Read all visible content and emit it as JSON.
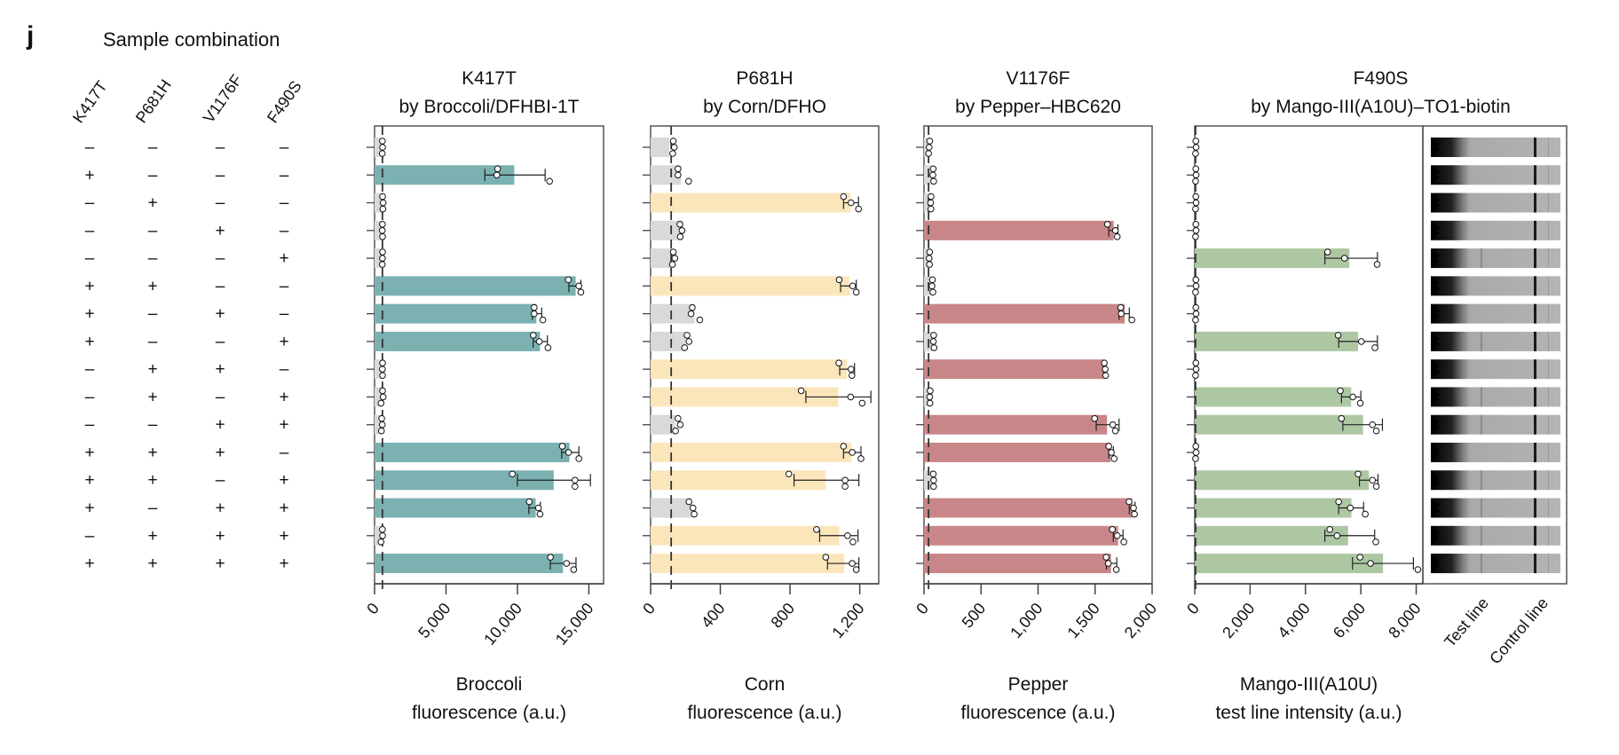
{
  "panel_label": "j",
  "sample_table": {
    "title": "Sample combination",
    "columns": [
      "K417T",
      "P681H",
      "V1176F",
      "F490S"
    ],
    "rows": [
      [
        "–",
        "–",
        "–",
        "–"
      ],
      [
        "+",
        "–",
        "–",
        "–"
      ],
      [
        "–",
        "+",
        "–",
        "–"
      ],
      [
        "–",
        "–",
        "+",
        "–"
      ],
      [
        "–",
        "–",
        "–",
        "+"
      ],
      [
        "+",
        "+",
        "–",
        "–"
      ],
      [
        "+",
        "–",
        "+",
        "–"
      ],
      [
        "+",
        "–",
        "–",
        "+"
      ],
      [
        "–",
        "+",
        "+",
        "–"
      ],
      [
        "–",
        "+",
        "–",
        "+"
      ],
      [
        "–",
        "–",
        "+",
        "+"
      ],
      [
        "+",
        "+",
        "+",
        "–"
      ],
      [
        "+",
        "+",
        "–",
        "+"
      ],
      [
        "+",
        "–",
        "+",
        "+"
      ],
      [
        "–",
        "+",
        "+",
        "+"
      ],
      [
        "+",
        "+",
        "+",
        "+"
      ]
    ]
  },
  "chart_data": [
    {
      "type": "bar",
      "orientation": "horizontal",
      "title": [
        "K417T",
        "by Broccoli/DFHBI-1T"
      ],
      "xlabel": [
        "Broccoli",
        "fluorescence (a.u.)"
      ],
      "xlim": [
        0,
        16030
      ],
      "xticks": [
        0,
        5000,
        10000,
        15000
      ],
      "xtick_labels": [
        "0",
        "5,000",
        "10,000",
        "15,000"
      ],
      "threshold": 550,
      "color": "#7bb1b1",
      "negative_color": "#d9d9d9",
      "positive": [
        false,
        true,
        false,
        false,
        false,
        true,
        true,
        true,
        false,
        false,
        false,
        true,
        true,
        true,
        false,
        true
      ],
      "values": [
        480,
        9780,
        500,
        490,
        500,
        14080,
        11330,
        11580,
        500,
        480,
        460,
        13640,
        12540,
        11280,
        470,
        13190
      ],
      "points": [
        [
          550,
          560,
          540
        ],
        [
          8610,
          8560,
          12250
        ],
        [
          560,
          600,
          580
        ],
        [
          550,
          540,
          560
        ],
        [
          560,
          550,
          540
        ],
        [
          13560,
          14300,
          14440
        ],
        [
          11170,
          11170,
          11780
        ],
        [
          11110,
          11530,
          12140
        ],
        [
          560,
          550,
          560
        ],
        [
          560,
          600,
          450
        ],
        [
          500,
          540,
          480
        ],
        [
          13140,
          13580,
          14300
        ],
        [
          9640,
          14030,
          14030
        ],
        [
          10830,
          11470,
          11580
        ],
        [
          550,
          560,
          450
        ],
        [
          12310,
          13440,
          13940
        ]
      ],
      "error": [
        null,
        [
          7720,
          11940
        ],
        null,
        null,
        null,
        [
          13600,
          14440
        ],
        [
          11050,
          11700
        ],
        [
          11100,
          12100
        ],
        null,
        null,
        null,
        [
          13100,
          14300
        ],
        [
          10000,
          15110
        ],
        [
          10800,
          11600
        ],
        null,
        [
          12300,
          14100
        ]
      ]
    },
    {
      "type": "bar",
      "orientation": "horizontal",
      "title": [
        "P681H",
        "by Corn/DFHO"
      ],
      "xlabel": [
        "Corn",
        "fluorescence (a.u.)"
      ],
      "xlim": [
        0,
        1309
      ],
      "xticks": [
        0,
        400,
        800,
        1200
      ],
      "xtick_labels": [
        "0",
        "400",
        "800",
        "1,200"
      ],
      "threshold": 118,
      "color": "#fbe6bc",
      "negative_color": "#d9d9d9",
      "positive": [
        false,
        false,
        true,
        false,
        false,
        true,
        false,
        false,
        true,
        true,
        false,
        true,
        true,
        false,
        true,
        true
      ],
      "values": [
        107,
        175,
        1148,
        186,
        123,
        1141,
        252,
        200,
        1127,
        1077,
        141,
        1152,
        1005,
        236,
        1082,
        1111
      ],
      "points": [
        [
          130,
          136,
          127
        ],
        [
          157,
          157,
          218
        ],
        [
          1107,
          1150,
          1193
        ],
        [
          168,
          180,
          170
        ],
        [
          130,
          139,
          125
        ],
        [
          1082,
          1159,
          1180
        ],
        [
          239,
          232,
          282
        ],
        [
          209,
          220,
          195
        ],
        [
          1080,
          1150,
          1155
        ],
        [
          864,
          1148,
          1214
        ],
        [
          157,
          170,
          143
        ],
        [
          1107,
          1157,
          1207
        ],
        [
          793,
          1116,
          1116
        ],
        [
          220,
          243,
          250
        ],
        [
          952,
          1130,
          1161
        ],
        [
          1005,
          1157,
          1180
        ]
      ],
      "error": [
        null,
        null,
        [
          1107,
          1193
        ],
        null,
        null,
        [
          1090,
          1180
        ],
        null,
        null,
        [
          1085,
          1170
        ],
        [
          891,
          1264
        ],
        null,
        [
          1107,
          1207
        ],
        [
          823,
          1195
        ],
        null,
        [
          970,
          1190
        ],
        [
          1015,
          1195
        ]
      ]
    },
    {
      "type": "bar",
      "orientation": "horizontal",
      "title": [
        "V1176F",
        "by Pepper–HBC620"
      ],
      "xlabel": [
        "Pepper",
        "fluorescence (a.u.)"
      ],
      "xlim": [
        0,
        2000
      ],
      "xticks": [
        0,
        500,
        1000,
        1500,
        2000
      ],
      "xtick_labels": [
        "0",
        "500",
        "1,000",
        "1,500",
        "2,000"
      ],
      "threshold": 40,
      "color": "#c98688",
      "negative_color": "#d9d9d9",
      "positive": [
        false,
        false,
        false,
        true,
        false,
        false,
        true,
        false,
        true,
        false,
        true,
        true,
        false,
        true,
        true,
        true
      ],
      "values": [
        35,
        70,
        60,
        1663,
        35,
        65,
        1760,
        80,
        1578,
        40,
        1605,
        1636,
        75,
        1826,
        1702,
        1640
      ],
      "points": [
        [
          50,
          45,
          40
        ],
        [
          81,
          78,
          85
        ],
        [
          62,
          58,
          60
        ],
        [
          1608,
          1678,
          1694
        ],
        [
          50,
          45,
          48
        ],
        [
          74,
          70,
          78
        ],
        [
          1725,
          1729,
          1822
        ],
        [
          85,
          82,
          88
        ],
        [
          1581,
          1589,
          1593
        ],
        [
          54,
          50,
          52
        ],
        [
          1496,
          1655,
          1678
        ],
        [
          1620,
          1643,
          1667
        ],
        [
          81,
          85,
          84
        ],
        [
          1798,
          1837,
          1845
        ],
        [
          1651,
          1694,
          1752
        ],
        [
          1597,
          1616,
          1686
        ]
      ],
      "error": [
        null,
        null,
        null,
        [
          1620,
          1700
        ],
        null,
        null,
        [
          1710,
          1800
        ],
        null,
        [
          1575,
          1595
        ],
        null,
        [
          1510,
          1710
        ],
        [
          1620,
          1660
        ],
        null,
        [
          1800,
          1850
        ],
        [
          1660,
          1745
        ],
        [
          1600,
          1690
        ]
      ]
    },
    {
      "type": "bar",
      "orientation": "horizontal",
      "title": [
        "F490S",
        "by Mango-III(A10U)–TO1-biotin"
      ],
      "xlabel": [
        "Mango-III(A10U)",
        "test line intensity (a.u.)"
      ],
      "xlim": [
        0,
        8240
      ],
      "xticks": [
        0,
        2000,
        4000,
        6000,
        8000
      ],
      "xtick_labels": [
        "0",
        "2,000",
        "4,000",
        "6,000",
        "8,000"
      ],
      "threshold": 30,
      "color": "#adc7a3",
      "negative_color": "#d9d9d9",
      "positive": [
        false,
        false,
        false,
        false,
        true,
        false,
        false,
        true,
        false,
        true,
        true,
        false,
        true,
        true,
        true,
        true
      ],
      "values": [
        30,
        25,
        25,
        25,
        5584,
        25,
        25,
        5900,
        25,
        5650,
        6080,
        25,
        6290,
        5660,
        5540,
        6800
      ],
      "points": [
        [
          40,
          50,
          30
        ],
        [
          40,
          50,
          30
        ],
        [
          40,
          50,
          30
        ],
        [
          40,
          50,
          30
        ],
        [
          4800,
          5410,
          6590
        ],
        [
          40,
          50,
          30
        ],
        [
          40,
          50,
          30
        ],
        [
          5180,
          6020,
          6510
        ],
        [
          40,
          50,
          30
        ],
        [
          5260,
          5710,
          5980
        ],
        [
          5300,
          6420,
          6560
        ],
        [
          40,
          50,
          30
        ],
        [
          5900,
          6420,
          6560
        ],
        [
          5200,
          5620,
          6160
        ],
        [
          4880,
          5140,
          6540
        ],
        [
          5970,
          6350,
          8060
        ]
      ],
      "error": [
        null,
        null,
        null,
        null,
        [
          4700,
          6600
        ],
        null,
        null,
        [
          5200,
          6600
        ],
        null,
        [
          5300,
          6000
        ],
        [
          5350,
          6780
        ],
        null,
        [
          5950,
          6620
        ],
        [
          5200,
          6100
        ],
        [
          4700,
          6500
        ],
        [
          5700,
          7900
        ]
      ]
    }
  ],
  "gel_strips": {
    "labels": [
      "Test line",
      "Control line"
    ],
    "test_line_visible": [
      false,
      false,
      false,
      false,
      true,
      false,
      false,
      true,
      false,
      true,
      true,
      false,
      true,
      true,
      true,
      true
    ]
  }
}
